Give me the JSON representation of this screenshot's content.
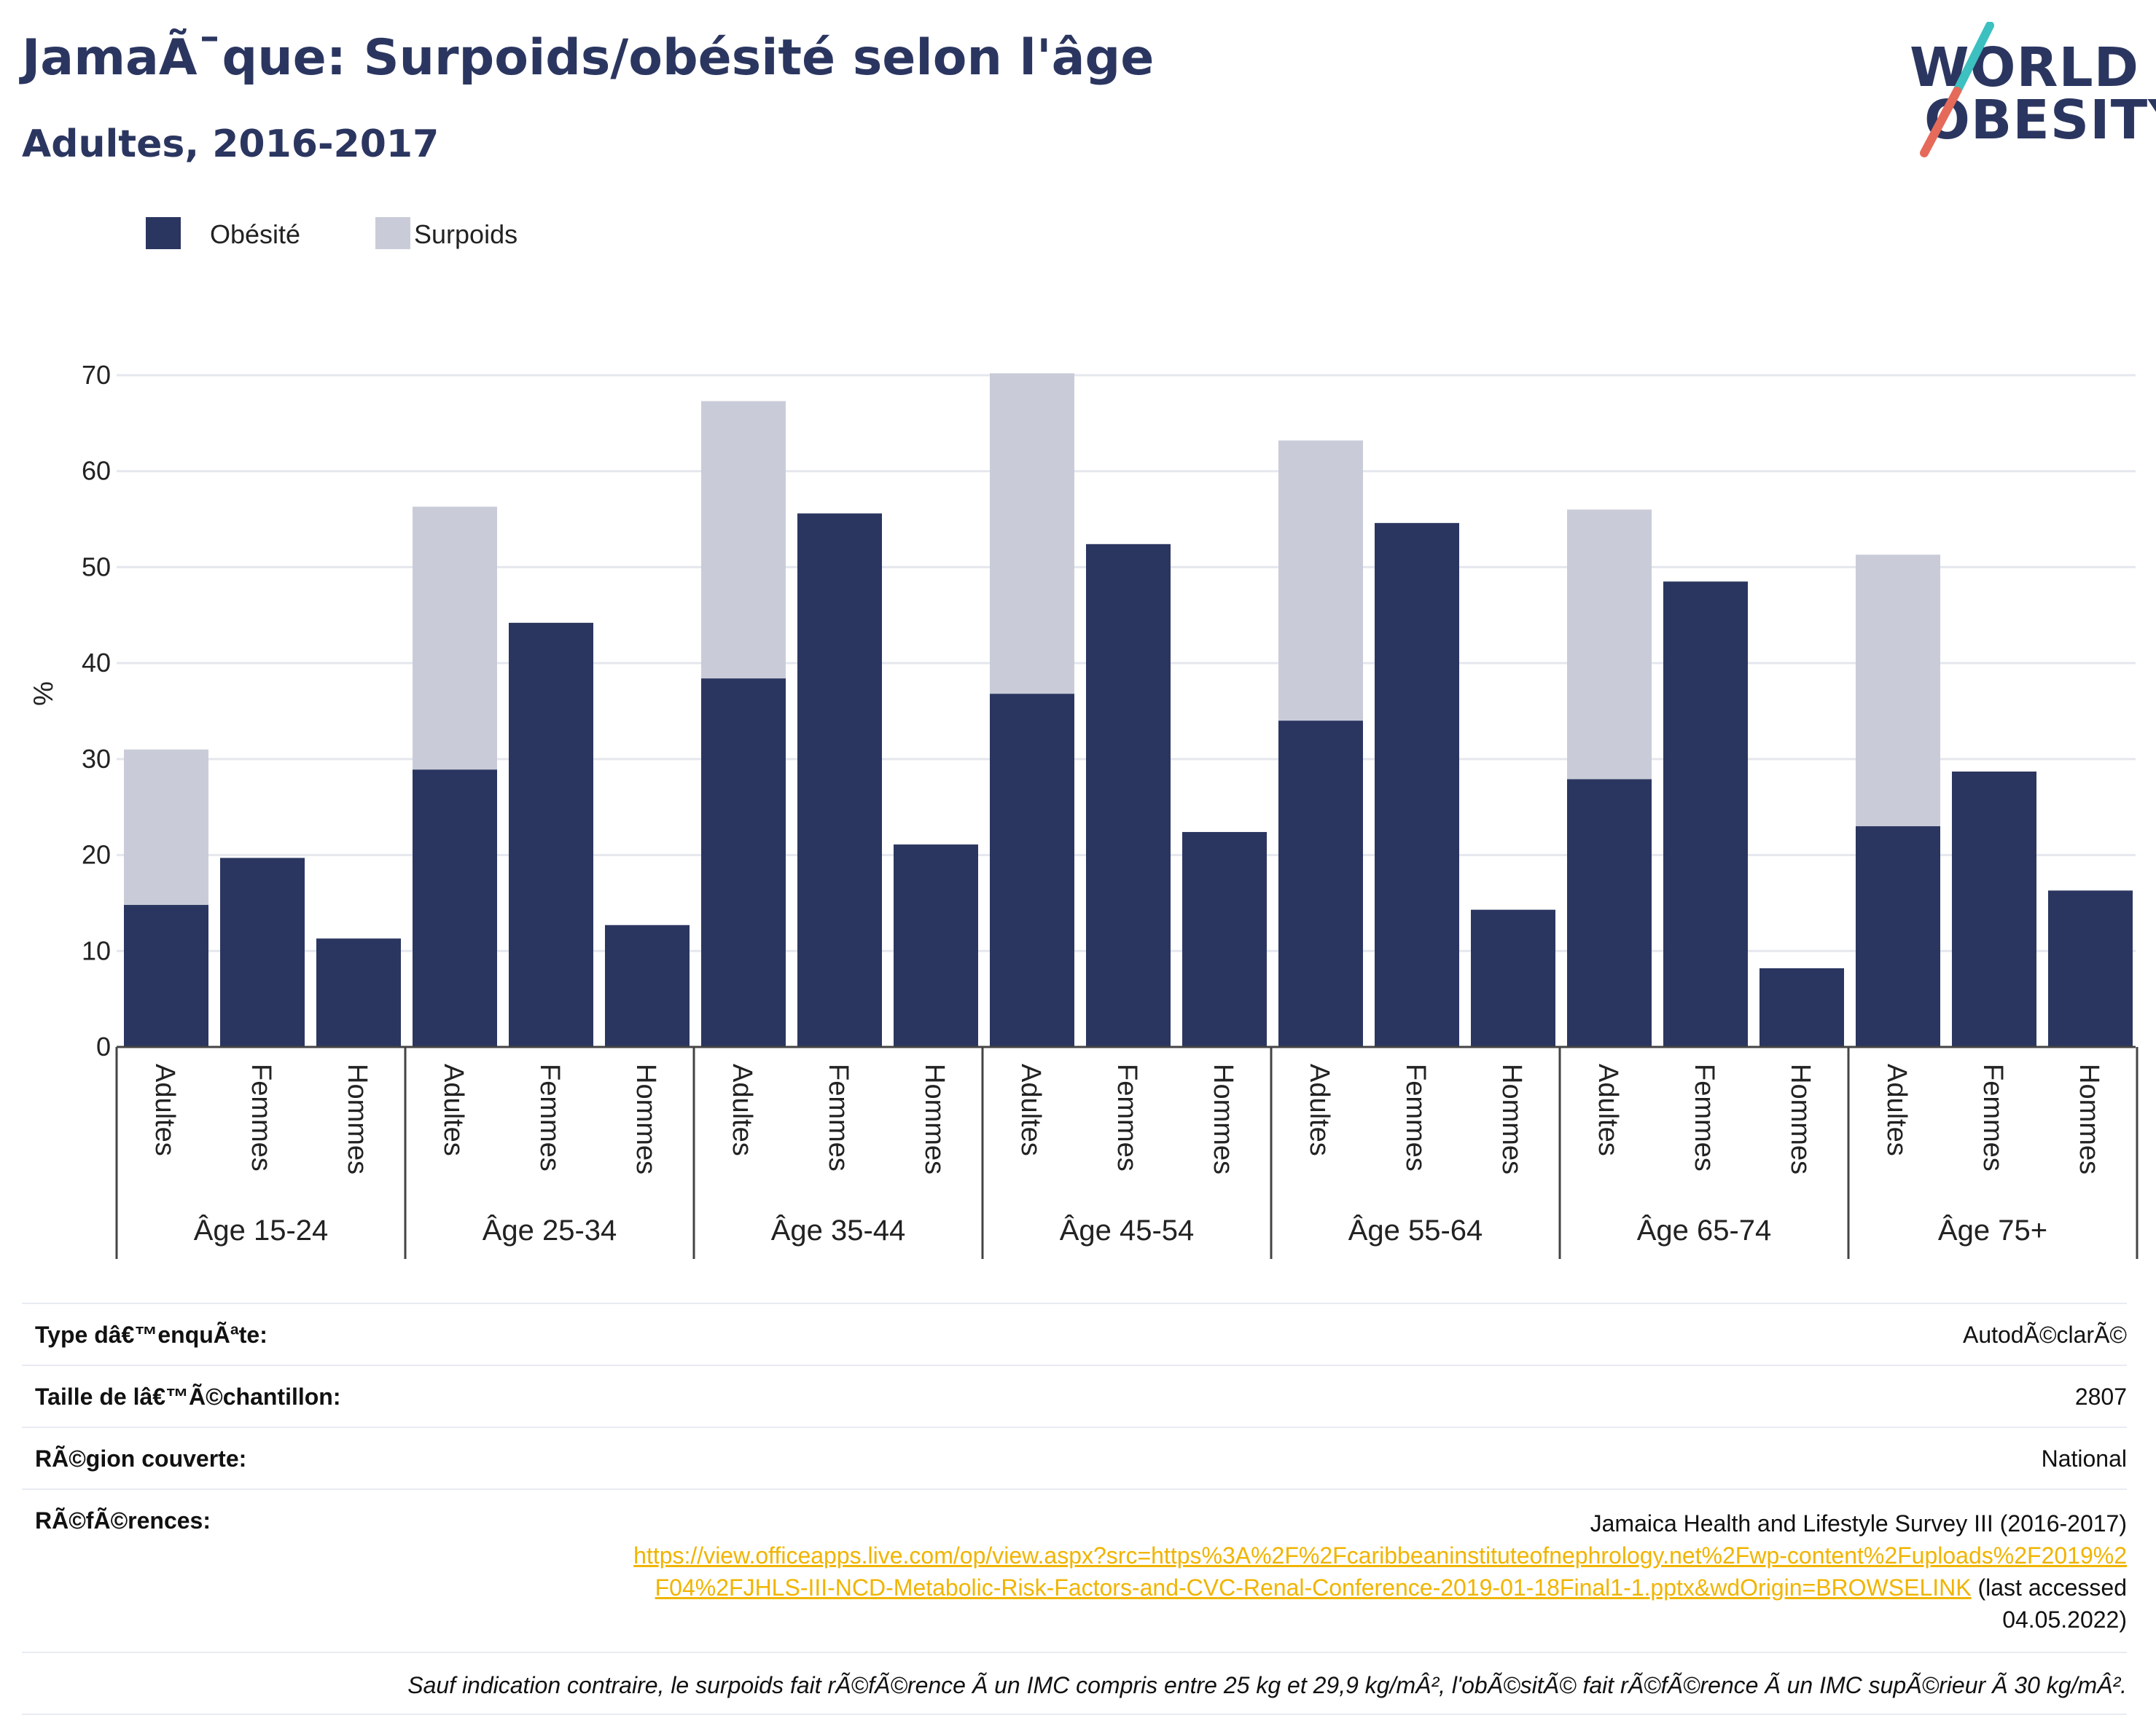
{
  "header": {
    "title": "JamaÃ¯que: Surpoids/obésité selon l'âge",
    "subtitle": "Adultes, 2016-2017"
  },
  "logo": {
    "line1": "WORLD",
    "line2": "OBESITY"
  },
  "colors": {
    "obesity": "#2b3660",
    "overweight": "#c9ccd8",
    "grid": "#e5e7ee",
    "link": "#f0b400",
    "logo_teal": "#3cc0c0",
    "logo_red": "#e56a5a"
  },
  "chart_data": {
    "type": "bar",
    "stacked": true,
    "ylabel": "%",
    "ylim": [
      0,
      70
    ],
    "yticks": [
      0,
      10,
      20,
      30,
      40,
      50,
      60,
      70
    ],
    "grid": true,
    "legend_position": "top-left",
    "series": [
      {
        "name": "Obésité",
        "color": "#2b3660"
      },
      {
        "name": "Surpoids",
        "color": "#c9ccd8"
      }
    ],
    "groups": [
      {
        "label": "Âge 15-24",
        "bars": [
          {
            "category": "Adultes",
            "obesity": 14.8,
            "overweight_total": 31.0
          },
          {
            "category": "Femmes",
            "obesity": 19.7
          },
          {
            "category": "Hommes",
            "obesity": 11.3
          }
        ]
      },
      {
        "label": "Âge 25-34",
        "bars": [
          {
            "category": "Adultes",
            "obesity": 28.9,
            "overweight_total": 56.3
          },
          {
            "category": "Femmes",
            "obesity": 44.2
          },
          {
            "category": "Hommes",
            "obesity": 12.7
          }
        ]
      },
      {
        "label": "Âge 35-44",
        "bars": [
          {
            "category": "Adultes",
            "obesity": 38.4,
            "overweight_total": 67.3
          },
          {
            "category": "Femmes",
            "obesity": 55.6
          },
          {
            "category": "Hommes",
            "obesity": 21.1
          }
        ]
      },
      {
        "label": "Âge 45-54",
        "bars": [
          {
            "category": "Adultes",
            "obesity": 36.8,
            "overweight_total": 70.2
          },
          {
            "category": "Femmes",
            "obesity": 52.4
          },
          {
            "category": "Hommes",
            "obesity": 22.4
          }
        ]
      },
      {
        "label": "Âge 55-64",
        "bars": [
          {
            "category": "Adultes",
            "obesity": 34.0,
            "overweight_total": 63.2
          },
          {
            "category": "Femmes",
            "obesity": 54.6
          },
          {
            "category": "Hommes",
            "obesity": 14.3
          }
        ]
      },
      {
        "label": "Âge 65-74",
        "bars": [
          {
            "category": "Adultes",
            "obesity": 27.9,
            "overweight_total": 56.0
          },
          {
            "category": "Femmes",
            "obesity": 48.5
          },
          {
            "category": "Hommes",
            "obesity": 8.2
          }
        ]
      },
      {
        "label": "Âge 75+",
        "bars": [
          {
            "category": "Adultes",
            "obesity": 23.0,
            "overweight_total": 51.3
          },
          {
            "category": "Femmes",
            "obesity": 28.7
          },
          {
            "category": "Hommes",
            "obesity": 16.3
          }
        ]
      }
    ]
  },
  "info": {
    "survey_type_label": "Type dâ€™enquÃªte:",
    "survey_type_value": "AutodÃ©clarÃ©",
    "sample_label": "Taille de lâ€™Ã©chantillon:",
    "sample_value": "2807",
    "region_label": "RÃ©gion couverte:",
    "region_value": "National",
    "refs_label": "RÃ©fÃ©rences:",
    "refs_title": "Jamaica Health and Lifestyle Survey III (2016-2017)",
    "refs_link": "https://view.officeapps.live.com/op/view.aspx?src=https%3A%2F%2Fcaribbeaninstituteofnephrology.net%2Fwp-content%2Fuploads%2F2019%2F04%2FJHLS-III-NCD-Metabolic-Risk-Factors-and-CVC-Renal-Conference-2019-01-18Final1-1.pptx&wdOrigin=BROWSELINK",
    "refs_accessed": " (last accessed 04.05.2022)",
    "footnote": "Sauf indication contraire, le surpoids fait rÃ©fÃ©rence Ã  un IMC compris entre 25 kg et 29,9 kg/mÂ², l'obÃ©sitÃ© fait rÃ©fÃ©rence Ã  un IMC supÃ©rieur Ã  30 kg/mÂ²."
  }
}
